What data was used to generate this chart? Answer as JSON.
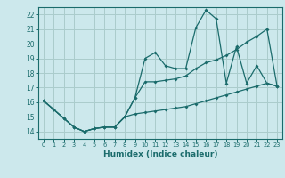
{
  "xlabel": "Humidex (Indice chaleur)",
  "ylabel": "",
  "bg_color": "#cce8ec",
  "grid_color": "#aacccc",
  "line_color": "#1a6b6b",
  "xlim": [
    -0.5,
    23.5
  ],
  "ylim": [
    13.5,
    22.5
  ],
  "xticks": [
    0,
    1,
    2,
    3,
    4,
    5,
    6,
    7,
    8,
    9,
    10,
    11,
    12,
    13,
    14,
    15,
    16,
    17,
    18,
    19,
    20,
    21,
    22,
    23
  ],
  "yticks": [
    14,
    15,
    16,
    17,
    18,
    19,
    20,
    21,
    22
  ],
  "line1_x": [
    0,
    1,
    2,
    3,
    4,
    5,
    6,
    7,
    8,
    9,
    10,
    11,
    12,
    13,
    14,
    15,
    16,
    17,
    18,
    19,
    20,
    21,
    22,
    23
  ],
  "line1_y": [
    16.1,
    15.5,
    14.9,
    14.3,
    14.0,
    14.2,
    14.3,
    14.3,
    15.0,
    16.3,
    19.0,
    19.4,
    18.5,
    18.3,
    18.3,
    21.1,
    22.3,
    21.7,
    17.3,
    19.8,
    17.3,
    18.5,
    17.3,
    17.1
  ],
  "line2_x": [
    0,
    1,
    2,
    3,
    4,
    5,
    6,
    7,
    8,
    9,
    10,
    11,
    12,
    13,
    14,
    15,
    16,
    17,
    18,
    19,
    20,
    21,
    22,
    23
  ],
  "line2_y": [
    16.1,
    15.5,
    14.9,
    14.3,
    14.0,
    14.2,
    14.3,
    14.3,
    15.0,
    16.3,
    17.4,
    17.4,
    17.5,
    17.6,
    17.8,
    18.3,
    18.7,
    18.9,
    19.2,
    19.6,
    20.1,
    20.5,
    21.0,
    17.1
  ],
  "line3_x": [
    0,
    1,
    2,
    3,
    4,
    5,
    6,
    7,
    8,
    9,
    10,
    11,
    12,
    13,
    14,
    15,
    16,
    17,
    18,
    19,
    20,
    21,
    22,
    23
  ],
  "line3_y": [
    16.1,
    15.5,
    14.9,
    14.3,
    14.0,
    14.2,
    14.3,
    14.3,
    15.0,
    15.2,
    15.3,
    15.4,
    15.5,
    15.6,
    15.7,
    15.9,
    16.1,
    16.3,
    16.5,
    16.7,
    16.9,
    17.1,
    17.3,
    17.1
  ]
}
